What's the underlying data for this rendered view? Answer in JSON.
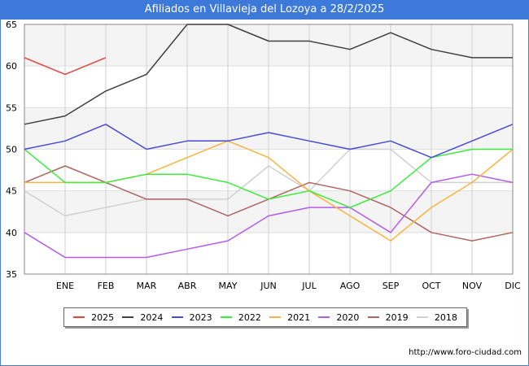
{
  "header": {
    "title": "Afiliados en Villavieja del Lozoya a 28/2/2025"
  },
  "footer": {
    "source": "http://www.foro-ciudad.com"
  },
  "chart_data": {
    "type": "line",
    "title": "Afiliados en Villavieja del Lozoya a 28/2/2025",
    "xlabel": "",
    "ylabel": "",
    "categories": [
      "",
      "ENE",
      "FEB",
      "MAR",
      "ABR",
      "MAY",
      "JUN",
      "JUL",
      "AGO",
      "SEP",
      "OCT",
      "NOV",
      "DIC"
    ],
    "ylim": [
      35,
      65
    ],
    "yticks": [
      35,
      40,
      45,
      50,
      55,
      60,
      65
    ],
    "grid": true,
    "legend_position": "bottom",
    "series": [
      {
        "name": "2025",
        "color": "#e8423c",
        "values": [
          61,
          59,
          61,
          null,
          null,
          null,
          null,
          null,
          null,
          null,
          null,
          null,
          null
        ]
      },
      {
        "name": "2024",
        "color": "#404040",
        "values": [
          53,
          54,
          57,
          59,
          65,
          65,
          63,
          63,
          62,
          64,
          62,
          61,
          61
        ]
      },
      {
        "name": "2023",
        "color": "#4a4ad8",
        "values": [
          50,
          51,
          53,
          50,
          51,
          51,
          52,
          51,
          50,
          51,
          49,
          51,
          53
        ]
      },
      {
        "name": "2022",
        "color": "#3cec3c",
        "values": [
          50,
          46,
          46,
          47,
          47,
          46,
          44,
          45,
          43,
          45,
          49,
          50,
          50
        ]
      },
      {
        "name": "2021",
        "color": "#f8b43c",
        "values": [
          46,
          46,
          46,
          47,
          49,
          51,
          49,
          45,
          42,
          39,
          43,
          46,
          50
        ]
      },
      {
        "name": "2020",
        "color": "#b45ce8",
        "values": [
          40,
          37,
          37,
          37,
          38,
          39,
          42,
          43,
          43,
          40,
          46,
          47,
          46
        ]
      },
      {
        "name": "2019",
        "color": "#b06464",
        "values": [
          46,
          48,
          46,
          44,
          44,
          42,
          44,
          46,
          45,
          43,
          40,
          39,
          40
        ]
      },
      {
        "name": "2018",
        "color": "#d0d0d0",
        "values": [
          45,
          42,
          43,
          44,
          44,
          44,
          48,
          45,
          50,
          50,
          46,
          46,
          46
        ]
      }
    ]
  }
}
